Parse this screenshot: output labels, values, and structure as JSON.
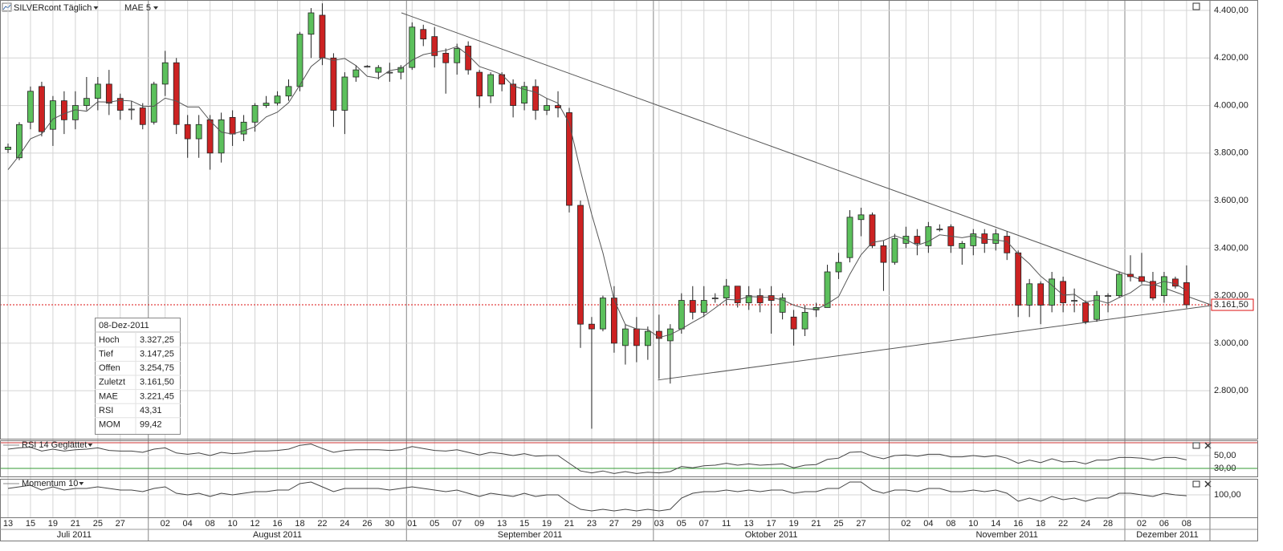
{
  "chart_data": {
    "type": "candlestick",
    "title": "SILVERcont Täglich",
    "categories": [
      "13",
      null,
      "15",
      null,
      "19",
      null,
      "21",
      null,
      "25",
      null,
      "27",
      null,
      null,
      null,
      "02",
      null,
      "04",
      null,
      "08",
      null,
      "10",
      null,
      "12",
      null,
      "16",
      null,
      "18",
      null,
      "22",
      null,
      "24",
      null,
      "26",
      null,
      "30",
      null,
      "01",
      null,
      "05",
      null,
      "07",
      null,
      "09",
      null,
      "13",
      null,
      "15",
      null,
      "19",
      null,
      "21",
      null,
      "23",
      null,
      "27",
      null,
      "29",
      null,
      "03",
      null,
      "05",
      null,
      "07",
      null,
      "11",
      null,
      "13",
      null,
      "17",
      null,
      "19",
      null,
      "21",
      null,
      "25",
      null,
      "27",
      null,
      null,
      null,
      "02",
      null,
      "04",
      null,
      "08",
      null,
      "10",
      null,
      "14",
      null,
      "16",
      null,
      "18",
      null,
      "22",
      null,
      "24",
      null,
      "28",
      null,
      null,
      "02",
      null,
      "06",
      null,
      "08"
    ],
    "months": [
      {
        "label": "Juli 2011",
        "from": 0
      },
      {
        "label": "August 2011",
        "from": 13
      },
      {
        "label": "September 2011",
        "from": 36
      },
      {
        "label": "Oktober 2011",
        "from": 58
      },
      {
        "label": "November 2011",
        "from": 79
      },
      {
        "label": "Dezember 2011",
        "from": 100
      }
    ],
    "open": [
      3815,
      3780,
      3930,
      4080,
      3900,
      4020,
      3940,
      4000,
      4030,
      4090,
      4030,
      3985,
      3990,
      3930,
      4090,
      4180,
      3920,
      3860,
      3940,
      3800,
      3950,
      3880,
      3930,
      4000,
      4010,
      4040,
      4080,
      4300,
      4380,
      4200,
      3980,
      4120,
      4165,
      4140,
      4140,
      4140,
      4160,
      4320,
      4290,
      4220,
      4180,
      4250,
      4140,
      4040,
      4130,
      4090,
      4010,
      4080,
      3980,
      4000,
      3970,
      3580,
      3080,
      3060,
      3190,
      2990,
      3060,
      2990,
      3050,
      3010,
      3060,
      3180,
      3130,
      3190,
      3190,
      3240,
      3170,
      3200,
      3200,
      3130,
      3110,
      3060,
      3140,
      3150,
      3300,
      3360,
      3520,
      3540,
      3410,
      3340,
      3420,
      3450,
      3410,
      3480,
      3490,
      3400,
      3410,
      3460,
      3420,
      3450,
      3380,
      3160,
      3250,
      3160,
      3260,
      3180,
      3170,
      3100,
      3200,
      3200,
      3290,
      3280,
      3260,
      3200,
      3270,
      3254.75
    ],
    "high": [
      3840,
      3930,
      4080,
      4100,
      4040,
      4060,
      4060,
      4120,
      4120,
      4150,
      4050,
      4020,
      4010,
      4100,
      4230,
      4200,
      3960,
      3960,
      3960,
      3970,
      3980,
      3960,
      4010,
      4040,
      4060,
      4110,
      4310,
      4410,
      4430,
      4220,
      4140,
      4170,
      4170,
      4170,
      4180,
      4170,
      4350,
      4340,
      4330,
      4240,
      4260,
      4270,
      4150,
      4140,
      4140,
      4110,
      4100,
      4110,
      4030,
      4060,
      3990,
      3600,
      3110,
      3200,
      3240,
      3080,
      3110,
      3070,
      3120,
      3080,
      3210,
      3240,
      3240,
      3210,
      3270,
      3240,
      3240,
      3230,
      3240,
      3210,
      3140,
      3160,
      3170,
      3330,
      3380,
      3560,
      3570,
      3550,
      3430,
      3460,
      3490,
      3480,
      3510,
      3500,
      3500,
      3430,
      3480,
      3480,
      3480,
      3470,
      3390,
      3270,
      3260,
      3300,
      3280,
      3230,
      3180,
      3220,
      3210,
      3300,
      3370,
      3380,
      3300,
      3300,
      3280,
      3327.25
    ],
    "low": [
      3800,
      3770,
      3900,
      3870,
      3830,
      3880,
      3900,
      3980,
      3980,
      3960,
      3940,
      3940,
      3900,
      3920,
      4040,
      3880,
      3780,
      3780,
      3730,
      3760,
      3830,
      3850,
      3890,
      3990,
      4000,
      4020,
      4060,
      4200,
      4170,
      3910,
      3880,
      4100,
      4160,
      4110,
      4100,
      4110,
      4150,
      4250,
      4160,
      4050,
      4130,
      4130,
      3990,
      4010,
      4060,
      3950,
      3980,
      3940,
      3960,
      3950,
      3550,
      2980,
      2640,
      3050,
      2960,
      2910,
      2920,
      2930,
      2850,
      2830,
      3040,
      3100,
      3110,
      3170,
      3160,
      3150,
      3140,
      3130,
      3040,
      3100,
      2990,
      3030,
      3110,
      3150,
      3270,
      3340,
      3450,
      3400,
      3220,
      3330,
      3400,
      3370,
      3380,
      3470,
      3380,
      3330,
      3370,
      3380,
      3390,
      3350,
      3110,
      3110,
      3080,
      3130,
      3130,
      3130,
      3080,
      3090,
      3130,
      3190,
      3260,
      3250,
      3180,
      3170,
      3230,
      3147.25
    ],
    "close": [
      3825,
      3920,
      4060,
      3890,
      4020,
      3940,
      4000,
      4030,
      4090,
      4010,
      3980,
      3985,
      3920,
      4090,
      4180,
      3920,
      3860,
      3920,
      3800,
      3940,
      3880,
      3930,
      4000,
      4010,
      4040,
      4080,
      4300,
      4390,
      4200,
      3980,
      4120,
      4150,
      4165,
      4160,
      4140,
      4160,
      4330,
      4280,
      4210,
      4180,
      4240,
      4150,
      4040,
      4130,
      4090,
      4000,
      4080,
      3980,
      4000,
      3990,
      3580,
      3080,
      3060,
      3190,
      3000,
      3060,
      2990,
      3050,
      3020,
      3060,
      3180,
      3130,
      3180,
      3190,
      3240,
      3170,
      3200,
      3170,
      3180,
      3190,
      3060,
      3130,
      3150,
      3300,
      3340,
      3530,
      3540,
      3410,
      3340,
      3440,
      3450,
      3420,
      3490,
      3480,
      3410,
      3420,
      3460,
      3420,
      3460,
      3380,
      3160,
      3250,
      3160,
      3270,
      3170,
      3180,
      3090,
      3200,
      3200,
      3290,
      3280,
      3260,
      3190,
      3280,
      3240,
      3161.5
    ],
    "up_color": "#5cc05c",
    "down_color": "#cc2222",
    "mae": {
      "name": "MAE 5",
      "color": "#555555",
      "values": [
        3730,
        3790,
        3860,
        3880,
        3943,
        3966,
        3982,
        3976,
        4016,
        4014,
        4022,
        4019,
        3997,
        3997,
        4031,
        4019,
        3994,
        3994,
        3936,
        3888,
        3880,
        3894,
        3910,
        3952,
        3972,
        4012,
        4086,
        4164,
        4202,
        4190,
        4198,
        4168,
        4123,
        4115,
        4147,
        4155,
        4191,
        4214,
        4224,
        4232,
        4248,
        4212,
        4164,
        4148,
        4130,
        4082,
        4068,
        4056,
        4030,
        4010,
        3926,
        3726,
        3542,
        3380,
        3182,
        3078,
        3060,
        3058,
        3024,
        3036,
        3060,
        3088,
        3114,
        3148,
        3184,
        3182,
        3196,
        3194,
        3192,
        3182,
        3160,
        3146,
        3142,
        3166,
        3196,
        3290,
        3372,
        3424,
        3432,
        3452,
        3436,
        3412,
        3428,
        3456,
        3450,
        3444,
        3452,
        3438,
        3434,
        3428,
        3376,
        3334,
        3282,
        3244,
        3202,
        3206,
        3174,
        3182,
        3168,
        3192,
        3212,
        3246,
        3244,
        3260,
        3250,
        3221.45
      ]
    },
    "ylim": [
      2598,
      4444
    ],
    "yticks": [
      {
        "value": 4400,
        "label": "4.400,00"
      },
      {
        "value": 4200,
        "label": "4.200,00"
      },
      {
        "value": 4000,
        "label": "4.000,00"
      },
      {
        "value": 3800,
        "label": "3.800,00"
      },
      {
        "value": 3600,
        "label": "3.600,00"
      },
      {
        "value": 3400,
        "label": "3.400,00"
      },
      {
        "value": 3200,
        "label": "3.200,00"
      },
      {
        "value": 3000,
        "label": "3.000,00"
      },
      {
        "value": 2800,
        "label": "2.800,00"
      }
    ],
    "grid": true,
    "last_price": {
      "value": 3161.5,
      "label": "3.161,50",
      "color": "#dd1111"
    },
    "trendlines": [
      {
        "x": [
          35.05,
          107.3
        ],
        "y": [
          4390,
          3159
        ]
      },
      {
        "x": [
          57.9,
          107.3
        ],
        "y": [
          2845,
          3159
        ]
      }
    ],
    "info": {
      "title": "08-Dez-2011",
      "rows": [
        {
          "label": "Hoch",
          "value": "3.327,25"
        },
        {
          "label": "Tief",
          "value": "3.147,25"
        },
        {
          "label": "Offen",
          "value": "3.254,75"
        },
        {
          "label": "Zuletzt",
          "value": "3.161,50",
          "color": "#dd1111"
        },
        {
          "label": "MAE",
          "value": "3.221,45"
        },
        {
          "label": "RSI",
          "value": "43,31"
        },
        {
          "label": "MOM",
          "value": "99,42"
        }
      ]
    },
    "rsi": {
      "name": "RSI 14 Geglättet",
      "color": "#444444",
      "ylim": [
        17.5,
        73.75
      ],
      "yticks": [
        {
          "value": 50,
          "label": "50,00"
        },
        {
          "value": 30,
          "label": "30,00"
        }
      ],
      "levels": [
        {
          "value": 70,
          "color": "#cc3333"
        },
        {
          "value": 30,
          "color": "#339933"
        }
      ],
      "values": [
        60,
        62,
        63,
        57,
        60,
        57,
        59,
        60,
        62,
        58,
        57,
        57,
        55,
        60,
        62,
        54,
        52,
        54,
        50,
        55,
        53,
        54,
        57,
        57,
        58,
        60,
        66,
        68,
        61,
        55,
        58,
        59,
        59,
        59,
        58,
        59,
        64,
        61,
        58,
        57,
        59,
        55,
        51,
        55,
        53,
        50,
        53,
        49,
        50,
        50,
        38,
        26,
        23,
        26,
        22,
        25,
        22,
        24,
        23,
        25,
        33,
        31,
        34,
        35,
        38,
        35,
        37,
        35,
        36,
        37,
        31,
        35,
        36,
        44,
        46,
        55,
        56,
        49,
        45,
        50,
        51,
        49,
        52,
        52,
        48,
        48,
        50,
        48,
        50,
        46,
        38,
        43,
        39,
        45,
        40,
        41,
        37,
        43,
        43,
        47,
        47,
        46,
        43,
        47,
        47,
        43.31
      ]
    },
    "momentum": {
      "name": "Momentum 10",
      "color": "#444444",
      "ylim": [
        86,
        110
      ],
      "yticks": [
        {
          "value": 100,
          "label": "100,00"
        }
      ],
      "values": [
        104,
        105,
        106,
        103,
        105,
        103,
        104,
        104,
        105,
        104,
        103,
        103,
        102,
        104,
        105,
        101,
        100,
        101,
        99,
        101,
        100,
        101,
        102,
        102,
        103,
        103,
        107,
        108,
        105,
        102,
        104,
        104,
        104,
        104,
        103,
        104,
        105,
        104,
        103,
        102,
        103,
        101,
        99,
        101,
        100,
        99,
        101,
        99,
        100,
        100,
        95,
        91,
        90,
        91,
        90,
        91,
        90,
        91,
        90,
        91,
        98,
        101,
        102,
        102,
        103,
        102,
        103,
        102,
        103,
        103,
        101,
        102,
        102,
        104,
        104,
        108,
        108,
        103,
        101,
        103,
        103,
        102,
        104,
        104,
        102,
        102,
        103,
        102,
        103,
        101,
        96,
        98,
        96,
        99,
        97,
        98,
        96,
        98,
        98,
        101,
        101,
        100,
        99,
        101,
        100,
        99.42
      ]
    }
  }
}
